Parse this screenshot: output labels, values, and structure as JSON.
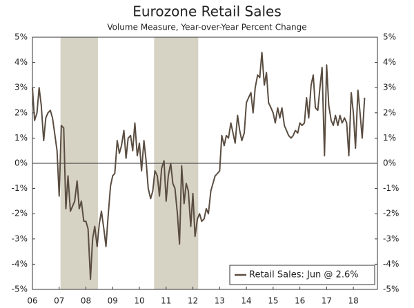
{
  "chart_data": {
    "type": "line",
    "title": "Eurozone Retail Sales",
    "subtitle": "Volume Measure, Year-over-Year Percent Change",
    "x": [
      2006.0,
      2006.08,
      2006.17,
      2006.25,
      2006.33,
      2006.42,
      2006.5,
      2006.58,
      2006.67,
      2006.75,
      2006.83,
      2006.92,
      2007.0,
      2007.08,
      2007.17,
      2007.25,
      2007.33,
      2007.42,
      2007.5,
      2007.58,
      2007.67,
      2007.75,
      2007.83,
      2007.92,
      2008.0,
      2008.08,
      2008.17,
      2008.25,
      2008.33,
      2008.42,
      2008.5,
      2008.58,
      2008.67,
      2008.75,
      2008.83,
      2008.92,
      2009.0,
      2009.08,
      2009.17,
      2009.25,
      2009.33,
      2009.42,
      2009.5,
      2009.58,
      2009.67,
      2009.75,
      2009.83,
      2009.92,
      2010.0,
      2010.08,
      2010.17,
      2010.25,
      2010.33,
      2010.42,
      2010.5,
      2010.58,
      2010.67,
      2010.75,
      2010.83,
      2010.92,
      2011.0,
      2011.08,
      2011.17,
      2011.25,
      2011.33,
      2011.42,
      2011.5,
      2011.58,
      2011.67,
      2011.75,
      2011.83,
      2011.92,
      2012.0,
      2012.08,
      2012.17,
      2012.25,
      2012.33,
      2012.42,
      2012.5,
      2012.58,
      2012.67,
      2012.75,
      2012.83,
      2012.92,
      2013.0,
      2013.08,
      2013.17,
      2013.25,
      2013.33,
      2013.42,
      2013.5,
      2013.58,
      2013.67,
      2013.75,
      2013.83,
      2013.92,
      2014.0,
      2014.08,
      2014.17,
      2014.25,
      2014.33,
      2014.42,
      2014.5,
      2014.58,
      2014.67,
      2014.75,
      2014.83,
      2014.92,
      2015.0,
      2015.08,
      2015.17,
      2015.25,
      2015.33,
      2015.42,
      2015.5,
      2015.58,
      2015.67,
      2015.75,
      2015.83,
      2015.92,
      2016.0,
      2016.08,
      2016.17,
      2016.25,
      2016.33,
      2016.42,
      2016.5,
      2016.58,
      2016.67,
      2016.75,
      2016.83,
      2016.92,
      2017.0,
      2017.08,
      2017.17,
      2017.25,
      2017.33,
      2017.42,
      2017.5,
      2017.58,
      2017.67,
      2017.75,
      2017.83,
      2017.92,
      2018.0,
      2018.08,
      2018.17,
      2018.25,
      2018.33,
      2018.42
    ],
    "series": [
      {
        "name": "Retail Sales: Jun @ 2.6%",
        "color": "#5a4d41",
        "values": [
          3.0,
          1.7,
          2.0,
          3.0,
          2.3,
          0.9,
          1.8,
          2.0,
          2.1,
          1.8,
          1.2,
          0.5,
          -1.3,
          1.5,
          1.4,
          -1.8,
          -0.5,
          -1.9,
          -1.7,
          -1.5,
          -0.7,
          -1.8,
          -1.5,
          -2.3,
          -2.3,
          -2.6,
          -4.6,
          -3.0,
          -2.5,
          -3.3,
          -2.4,
          -1.9,
          -2.6,
          -3.3,
          -2.1,
          -0.9,
          -0.5,
          -0.4,
          0.9,
          0.4,
          0.7,
          1.3,
          0.2,
          1.0,
          1.1,
          0.5,
          1.6,
          0.3,
          0.8,
          -0.3,
          0.9,
          0.1,
          -1.0,
          -1.4,
          -1.1,
          -0.3,
          -0.5,
          -1.3,
          -0.2,
          0.1,
          -1.5,
          -0.5,
          0.0,
          -0.8,
          -1.0,
          -2.0,
          -3.2,
          -0.1,
          -1.6,
          -0.8,
          -1.1,
          -2.5,
          -1.2,
          -2.9,
          -2.2,
          -2.0,
          -2.3,
          -2.2,
          -1.8,
          -2.0,
          -1.1,
          -0.8,
          -0.5,
          -0.4,
          -0.3,
          1.1,
          0.7,
          1.1,
          1.0,
          1.6,
          1.2,
          0.8,
          1.9,
          1.3,
          0.9,
          1.2,
          2.4,
          2.6,
          2.8,
          2.0,
          3.0,
          3.5,
          3.4,
          4.4,
          3.1,
          3.6,
          2.4,
          2.2,
          2.0,
          1.6,
          2.2,
          1.8,
          2.2,
          1.5,
          1.3,
          1.1,
          1.0,
          1.1,
          1.3,
          1.2,
          1.6,
          1.5,
          1.6,
          2.6,
          1.8,
          3.1,
          3.5,
          2.2,
          2.1,
          3.0,
          3.8,
          0.3,
          3.9,
          2.3,
          1.7,
          1.5,
          1.9,
          1.5,
          1.9,
          1.6,
          1.8,
          1.6,
          0.3,
          2.8,
          2.0,
          0.6,
          2.9,
          2.0,
          1.0,
          2.6
        ]
      }
    ],
    "shaded_ranges": [
      [
        2007.05,
        2008.45
      ],
      [
        2010.55,
        2012.2
      ]
    ],
    "shade_color": "#d6d2c4",
    "xlim": [
      2006,
      2018.9
    ],
    "xticks": [
      {
        "value": 2006,
        "label": "06"
      },
      {
        "value": 2007,
        "label": "07"
      },
      {
        "value": 2008,
        "label": "08"
      },
      {
        "value": 2009,
        "label": "09"
      },
      {
        "value": 2010,
        "label": "10"
      },
      {
        "value": 2011,
        "label": "11"
      },
      {
        "value": 2012,
        "label": "12"
      },
      {
        "value": 2013,
        "label": "13"
      },
      {
        "value": 2014,
        "label": "14"
      },
      {
        "value": 2015,
        "label": "15"
      },
      {
        "value": 2016,
        "label": "16"
      },
      {
        "value": 2017,
        "label": "17"
      },
      {
        "value": 2018,
        "label": "18"
      }
    ],
    "ylim": [
      -5,
      5
    ],
    "yticks": [
      {
        "value": -5,
        "label": "-5%"
      },
      {
        "value": -4,
        "label": "-4%"
      },
      {
        "value": -3,
        "label": "-3%"
      },
      {
        "value": -2,
        "label": "-2%"
      },
      {
        "value": -1,
        "label": "-1%"
      },
      {
        "value": 0,
        "label": "0%"
      },
      {
        "value": 1,
        "label": "1%"
      },
      {
        "value": 2,
        "label": "2%"
      },
      {
        "value": 3,
        "label": "3%"
      },
      {
        "value": 4,
        "label": "4%"
      },
      {
        "value": 5,
        "label": "5%"
      }
    ],
    "legend": "bottom-right"
  }
}
